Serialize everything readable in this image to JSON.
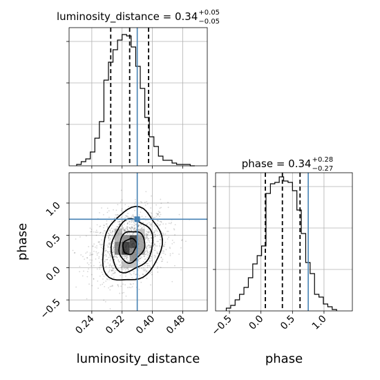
{
  "chart_data": {
    "type": "corner",
    "parameters": [
      "luminosity_distance",
      "phase"
    ],
    "truth": {
      "luminosity_distance": 0.36,
      "phase": 0.75
    },
    "truth_color": "#4682b4",
    "panels": [
      {
        "id": "hist_luminosity_distance",
        "type": "step-histogram",
        "parameter": "luminosity_distance",
        "title": {
          "base": "luminosity_distance = 0.34",
          "sup": "+0.05",
          "sub": "−0.05"
        },
        "xlim": [
          0.18,
          0.545
        ],
        "ylim": [
          0,
          1.0
        ],
        "bins": [
          0.2,
          0.212,
          0.224,
          0.236,
          0.248,
          0.26,
          0.272,
          0.284,
          0.296,
          0.308,
          0.32,
          0.332,
          0.344,
          0.356,
          0.368,
          0.38,
          0.392,
          0.404,
          0.416,
          0.428,
          0.44,
          0.452,
          0.464,
          0.476,
          0.488,
          0.5,
          0.512
        ],
        "values": [
          0.01,
          0.03,
          0.05,
          0.1,
          0.2,
          0.32,
          0.62,
          0.75,
          0.84,
          0.91,
          0.95,
          0.94,
          0.86,
          0.72,
          0.56,
          0.35,
          0.21,
          0.14,
          0.07,
          0.04,
          0.04,
          0.02,
          0.01,
          0.01,
          0.01,
          0.0
        ],
        "quantiles": [
          0.29,
          0.34,
          0.39
        ],
        "truth": 0.36,
        "yticks": [
          0.3,
          0.6,
          0.9
        ]
      },
      {
        "id": "hist_phase",
        "type": "step-histogram",
        "parameter": "phase",
        "title": {
          "base": "phase = 0.34",
          "sup": "+0.28",
          "sub": "−0.27"
        },
        "xlim": [
          -0.72,
          1.45
        ],
        "ylim": [
          0,
          1.0
        ],
        "xticks": [
          -0.5,
          0.0,
          0.5,
          1.0
        ],
        "xticklabels": [
          "−0.5",
          "0.0",
          "0.5",
          "1.0"
        ],
        "bins": [
          -0.55,
          -0.48,
          -0.41,
          -0.34,
          -0.27,
          -0.2,
          -0.13,
          -0.06,
          0.01,
          0.08,
          0.15,
          0.22,
          0.29,
          0.36,
          0.43,
          0.5,
          0.57,
          0.64,
          0.71,
          0.78,
          0.85,
          0.92,
          0.99,
          1.06,
          1.13,
          1.2
        ],
        "values": [
          0.02,
          0.04,
          0.08,
          0.12,
          0.17,
          0.24,
          0.34,
          0.4,
          0.47,
          0.85,
          0.92,
          0.93,
          0.97,
          0.94,
          0.93,
          0.87,
          0.73,
          0.56,
          0.35,
          0.27,
          0.12,
          0.1,
          0.05,
          0.03,
          0.01
        ],
        "quantiles": [
          0.07,
          0.34,
          0.62
        ],
        "truth": 0.75,
        "xlabel": "phase",
        "yticks": [
          0.3,
          0.6,
          0.9
        ]
      },
      {
        "id": "joint_luminosity_distance_phase",
        "type": "2d-density",
        "x": "luminosity_distance",
        "y": "phase",
        "xlim": [
          0.18,
          0.545
        ],
        "ylim": [
          -0.67,
          1.47
        ],
        "xticks": [
          0.24,
          0.32,
          0.4,
          0.48
        ],
        "xticklabels": [
          "0.24",
          "0.32",
          "0.40",
          "0.48"
        ],
        "yticks": [
          -0.5,
          0.0,
          0.5,
          1.0
        ],
        "yticklabels": [
          "−0.5",
          "0.0",
          "0.5",
          "1.0"
        ],
        "xlabel": "luminosity_distance",
        "ylabel": "phase",
        "center": [
          0.34,
          0.34
        ],
        "spread": [
          0.05,
          0.27
        ],
        "density_cells": [
          {
            "x": [
              0.32,
              0.34
            ],
            "y": [
              0.2,
              0.4
            ],
            "level": 0.95
          },
          {
            "x": [
              0.34,
              0.36
            ],
            "y": [
              0.3,
              0.5
            ],
            "level": 0.9
          },
          {
            "x": [
              0.3,
              0.32
            ],
            "y": [
              0.2,
              0.4
            ],
            "level": 0.6
          },
          {
            "x": [
              0.34,
              0.36
            ],
            "y": [
              0.1,
              0.3
            ],
            "level": 0.55
          },
          {
            "x": [
              0.32,
              0.34
            ],
            "y": [
              0.4,
              0.5
            ],
            "level": 0.55
          },
          {
            "x": [
              0.36,
              0.38
            ],
            "y": [
              0.2,
              0.5
            ],
            "level": 0.45
          },
          {
            "x": [
              0.3,
              0.32
            ],
            "y": [
              0.4,
              0.6
            ],
            "level": 0.35
          },
          {
            "x": [
              0.36,
              0.38
            ],
            "y": [
              0.5,
              0.6
            ],
            "level": 0.3
          },
          {
            "x": [
              0.32,
              0.36
            ],
            "y": [
              0.0,
              0.1
            ],
            "level": 0.3
          }
        ],
        "contours": [
          {
            "rx": 0.018,
            "ry": 0.12,
            "cx": 0.34,
            "cy": 0.33
          },
          {
            "rx": 0.034,
            "ry": 0.24,
            "cx": 0.345,
            "cy": 0.33
          },
          {
            "rx": 0.055,
            "ry": 0.4,
            "cx": 0.345,
            "cy": 0.34
          },
          {
            "rx": 0.078,
            "ry": 0.56,
            "cx": 0.345,
            "cy": 0.34
          }
        ]
      }
    ]
  }
}
